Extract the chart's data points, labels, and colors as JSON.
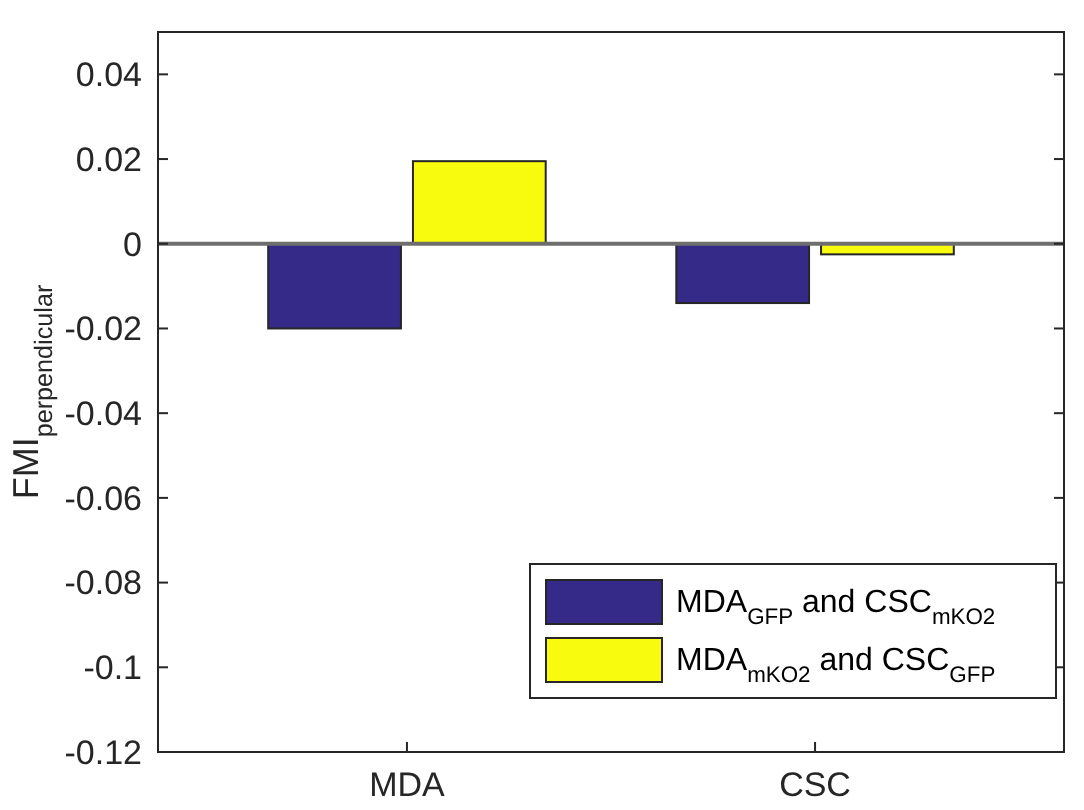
{
  "chart_data": {
    "type": "bar",
    "ylabel": "FMI$_{perpendicular}$",
    "categories": [
      "MDA",
      "CSC"
    ],
    "series": [
      {
        "name": "MDA$_{GFP}$ and CSC$_{mKO2}$",
        "color": "#352a87",
        "values": [
          -0.02,
          -0.014
        ]
      },
      {
        "name": "MDA$_{mKO2}$ and CSC$_{GFP}$",
        "color": "#f9fb0e",
        "values": [
          0.0195,
          -0.0025
        ]
      }
    ],
    "ylim": [
      -0.12,
      0.05
    ],
    "yticks": [
      -0.12,
      -0.1,
      -0.08,
      -0.06,
      -0.04,
      -0.02,
      0,
      0.02,
      0.04
    ],
    "ref_lines": [
      {
        "axis": "y",
        "value": 0,
        "color": "#6e6e6e"
      }
    ],
    "grid": false,
    "legend": "bottom right"
  }
}
